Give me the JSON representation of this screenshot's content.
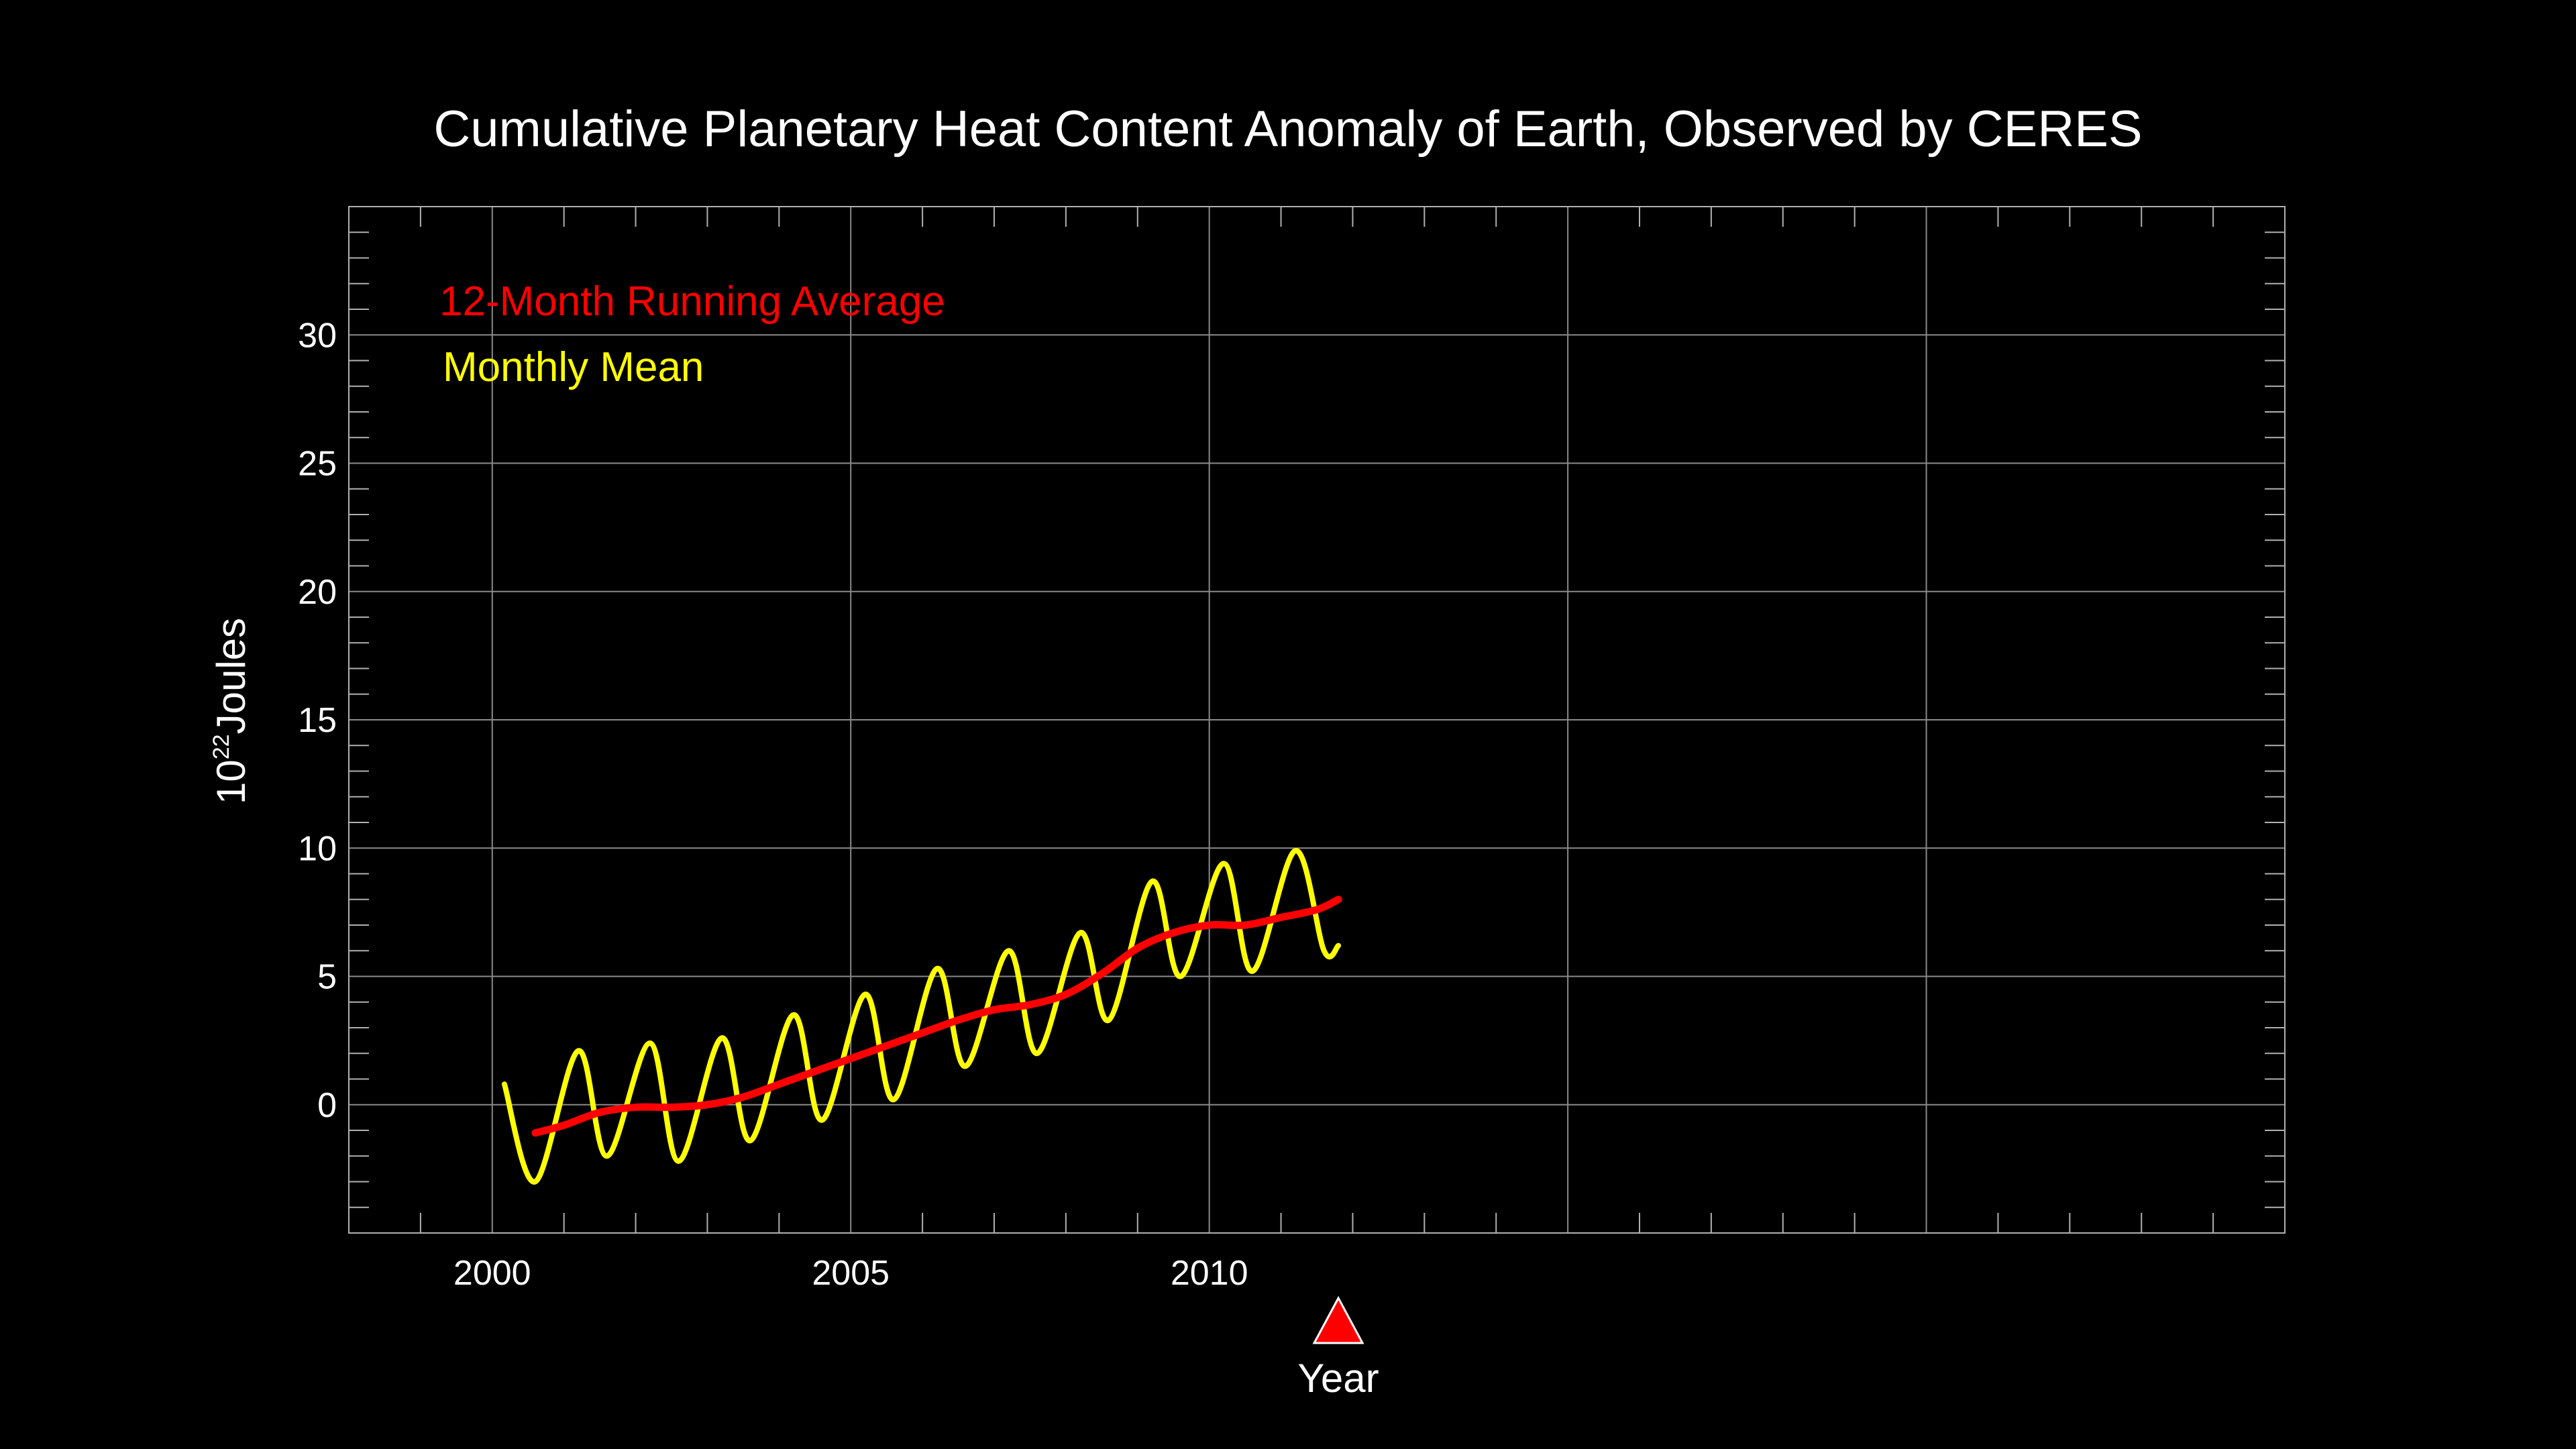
{
  "chart_data": {
    "type": "line",
    "title": "Cumulative Planetary Heat Content Anomaly of Earth, Observed by CERES",
    "xlabel": "Year",
    "ylabel_base": "10",
    "ylabel_exp": "22",
    "ylabel_unit": "Joules",
    "xlim": [
      1998,
      2025
    ],
    "ylim": [
      -5,
      35
    ],
    "x_ticks": [
      2000,
      2005,
      2010
    ],
    "y_ticks": [
      0,
      5,
      10,
      15,
      20,
      25,
      30
    ],
    "x_tick_labels": [
      "2000",
      "2005",
      "2010"
    ],
    "y_tick_labels": [
      "0",
      "5",
      "10",
      "15",
      "20",
      "25",
      "30"
    ],
    "grid": true,
    "legend_position": "top-left",
    "marker": {
      "x": 2011.8,
      "color": "#ff0000"
    },
    "series": [
      {
        "name": "12-Month Running Average",
        "color": "#ff0000",
        "x": [
          2000.6,
          2001.0,
          2001.5,
          2002.0,
          2002.5,
          2003.0,
          2003.5,
          2004.0,
          2004.5,
          2005.0,
          2005.5,
          2006.0,
          2006.5,
          2007.0,
          2007.5,
          2008.0,
          2008.5,
          2009.0,
          2009.5,
          2010.0,
          2010.5,
          2011.0,
          2011.5,
          2011.8
        ],
        "values": [
          -1.1,
          -0.8,
          -0.3,
          -0.1,
          -0.1,
          0.0,
          0.3,
          0.8,
          1.3,
          1.8,
          2.3,
          2.8,
          3.3,
          3.7,
          3.9,
          4.3,
          5.1,
          6.1,
          6.7,
          7.0,
          7.0,
          7.3,
          7.6,
          8.0
        ]
      },
      {
        "name": "Monthly Mean",
        "color": "#ffff00",
        "x": [
          2000.17,
          2000.6,
          2001.2,
          2001.6,
          2002.2,
          2002.6,
          2003.2,
          2003.6,
          2004.2,
          2004.6,
          2005.2,
          2005.6,
          2006.2,
          2006.6,
          2007.2,
          2007.6,
          2008.2,
          2008.6,
          2009.2,
          2009.6,
          2010.2,
          2010.6,
          2011.2,
          2011.6,
          2011.8
        ],
        "values": [
          0.8,
          -3.0,
          2.1,
          -2.0,
          2.4,
          -2.2,
          2.6,
          -1.4,
          3.5,
          -0.6,
          4.3,
          0.2,
          5.3,
          1.5,
          6.0,
          2.0,
          6.7,
          3.3,
          8.7,
          5.0,
          9.4,
          5.2,
          9.9,
          6.0,
          6.2
        ]
      }
    ]
  }
}
